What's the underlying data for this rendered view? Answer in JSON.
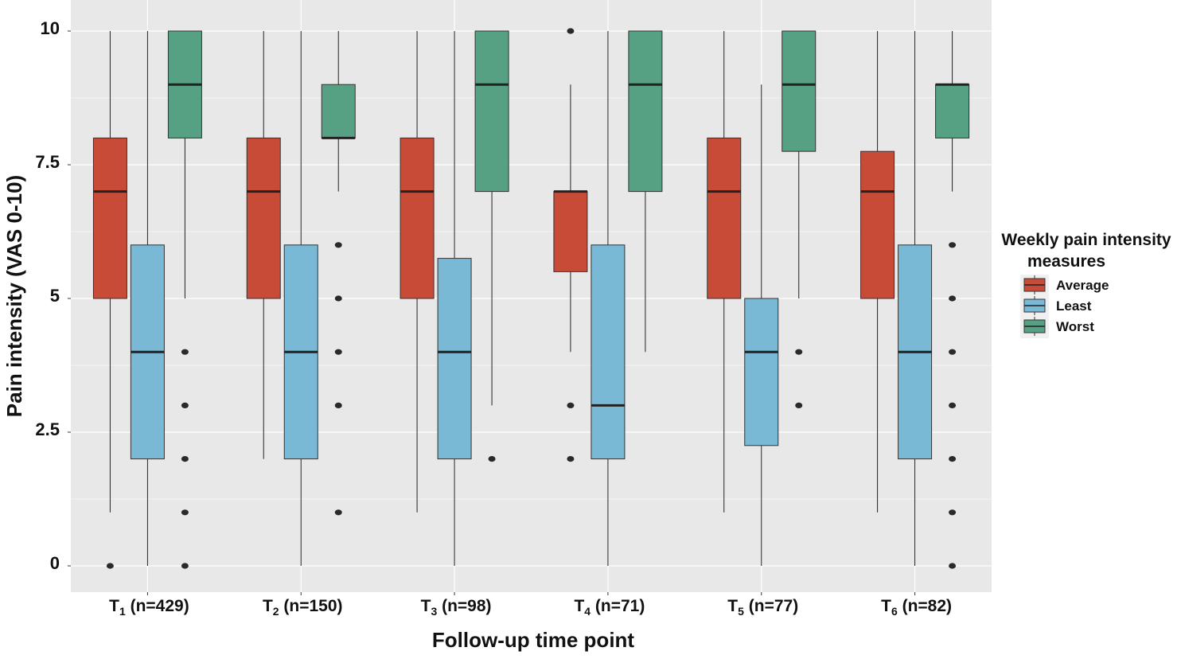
{
  "chart_data": {
    "type": "boxplot",
    "xlabel": "Follow-up time point",
    "ylabel": "Pain intensity (VAS 0-10)",
    "ylim": [
      -0.5,
      10.5
    ],
    "yticks": [
      0,
      2.5,
      5,
      7.5,
      10
    ],
    "ytick_labels": [
      "0",
      "2.5",
      "5",
      "7.5",
      "10"
    ],
    "grid": true,
    "categories": [
      {
        "base": "T",
        "sub": "1",
        "rest": " (n=429)"
      },
      {
        "base": "T",
        "sub": "2",
        "rest": " (n=150)"
      },
      {
        "base": "T",
        "sub": "3",
        "rest": " (n=98)"
      },
      {
        "base": "T",
        "sub": "4",
        "rest": " (n=71)"
      },
      {
        "base": "T",
        "sub": "5",
        "rest": " (n=77)"
      },
      {
        "base": "T",
        "sub": "6",
        "rest": " (n=82)"
      }
    ],
    "legend": {
      "title_line1": "Weekly pain intensity",
      "title_line2": "measures",
      "position": "right"
    },
    "series": [
      {
        "name": "Average",
        "color": "#c84b38",
        "boxes": [
          {
            "whisker_low": 1,
            "q1": 5,
            "median": 7,
            "q3": 8,
            "whisker_high": 10,
            "outliers": [
              0
            ]
          },
          {
            "whisker_low": 2,
            "q1": 5,
            "median": 7,
            "q3": 8,
            "whisker_high": 10,
            "outliers": []
          },
          {
            "whisker_low": 1,
            "q1": 5,
            "median": 7,
            "q3": 8,
            "whisker_high": 10,
            "outliers": []
          },
          {
            "whisker_low": 4,
            "q1": 5.5,
            "median": 7,
            "q3": 7,
            "whisker_high": 9,
            "outliers": [
              2,
              3,
              10
            ]
          },
          {
            "whisker_low": 1,
            "q1": 5,
            "median": 7,
            "q3": 8,
            "whisker_high": 10,
            "outliers": []
          },
          {
            "whisker_low": 1,
            "q1": 5,
            "median": 7,
            "q3": 7.75,
            "whisker_high": 10,
            "outliers": []
          }
        ]
      },
      {
        "name": "Least",
        "color": "#79b9d6",
        "boxes": [
          {
            "whisker_low": 0,
            "q1": 2,
            "median": 4,
            "q3": 6,
            "whisker_high": 10,
            "outliers": []
          },
          {
            "whisker_low": 0,
            "q1": 2,
            "median": 4,
            "q3": 6,
            "whisker_high": 10,
            "outliers": []
          },
          {
            "whisker_low": 0,
            "q1": 2,
            "median": 4,
            "q3": 5.75,
            "whisker_high": 10,
            "outliers": []
          },
          {
            "whisker_low": 0,
            "q1": 2,
            "median": 3,
            "q3": 6,
            "whisker_high": 10,
            "outliers": []
          },
          {
            "whisker_low": 0,
            "q1": 2.25,
            "median": 4,
            "q3": 5,
            "whisker_high": 9,
            "outliers": []
          },
          {
            "whisker_low": 0,
            "q1": 2,
            "median": 4,
            "q3": 6,
            "whisker_high": 10,
            "outliers": []
          }
        ]
      },
      {
        "name": "Worst",
        "color": "#56a083",
        "boxes": [
          {
            "whisker_low": 5,
            "q1": 8,
            "median": 9,
            "q3": 10,
            "whisker_high": 10,
            "outliers": [
              0,
              1,
              2,
              3,
              4
            ]
          },
          {
            "whisker_low": 7,
            "q1": 8,
            "median": 8,
            "q3": 9,
            "whisker_high": 10,
            "outliers": [
              1,
              3,
              4,
              5,
              6
            ]
          },
          {
            "whisker_low": 3,
            "q1": 7,
            "median": 9,
            "q3": 10,
            "whisker_high": 10,
            "outliers": [
              2
            ]
          },
          {
            "whisker_low": 4,
            "q1": 7,
            "median": 9,
            "q3": 10,
            "whisker_high": 10,
            "outliers": []
          },
          {
            "whisker_low": 5,
            "q1": 7.75,
            "median": 9,
            "q3": 10,
            "whisker_high": 10,
            "outliers": [
              3,
              4
            ]
          },
          {
            "whisker_low": 7,
            "q1": 8,
            "median": 9,
            "q3": 9,
            "whisker_high": 10,
            "outliers": [
              0,
              1,
              2,
              3,
              4,
              5,
              6
            ]
          }
        ]
      }
    ]
  }
}
